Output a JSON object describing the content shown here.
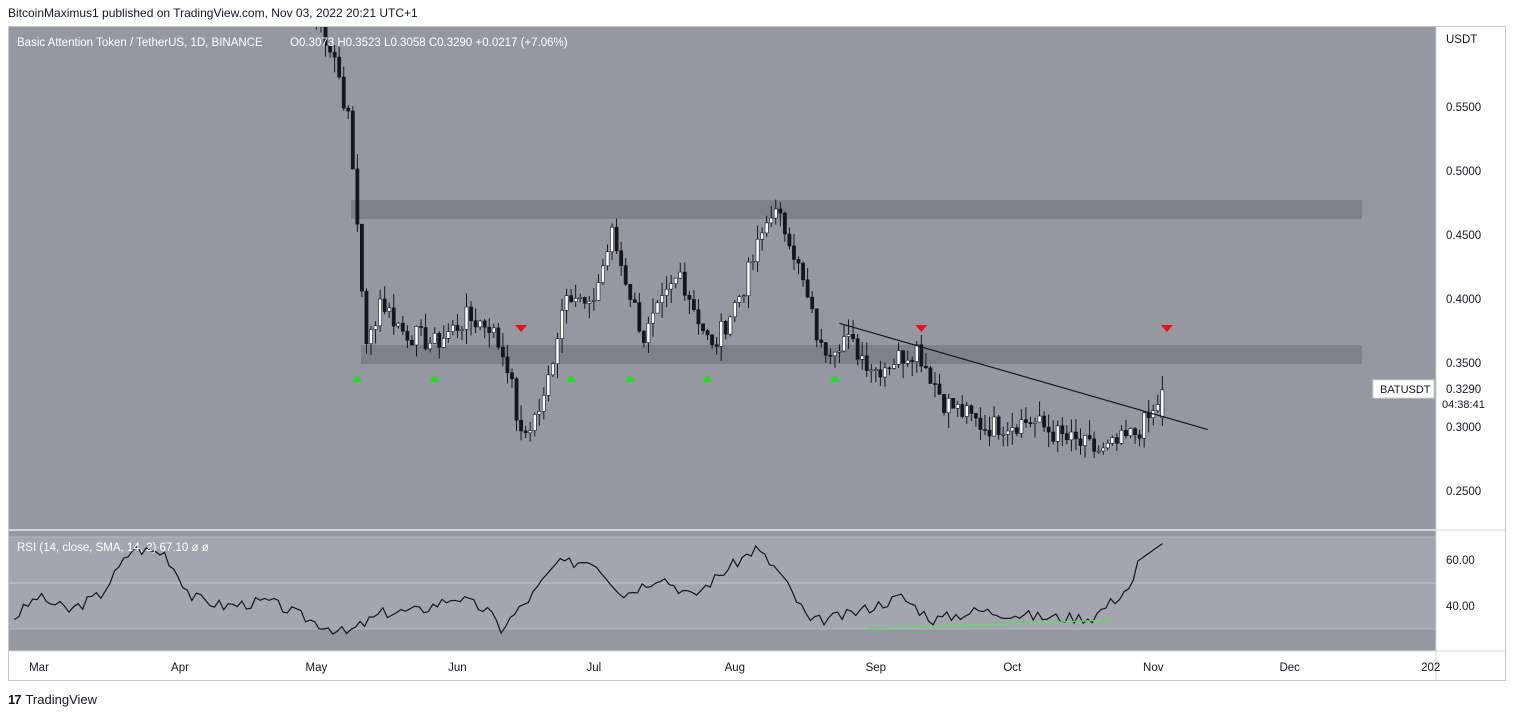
{
  "publisher_line": "BitcoinMaximus1 published on TradingView.com, Nov 03, 2022 20:21 UTC+1",
  "footer": {
    "logo_glyph": "17",
    "brand": "TradingView"
  },
  "legend": {
    "symbol": "Basic Attention Token / TetherUS, 1D, BINANCE",
    "open_label": "O",
    "open_value": "0.3073",
    "high_label": "H",
    "high_value": "0.3523",
    "low_label": "L",
    "low_value": "0.3058",
    "close_label": "C",
    "close_value": "0.3290",
    "change": "+0.0217 (+7.06%)"
  },
  "rsi_legend": "RSI (14, close, SMA, 14, 2) 67.10 ø ø",
  "price_axis": {
    "currency": "USDT",
    "ticks": [
      "0.5500",
      "0.5000",
      "0.4500",
      "0.4000",
      "0.3500",
      "0.3000",
      "0.2500"
    ]
  },
  "price_tag": {
    "symbol": "BATUSDT",
    "price": "0.3290",
    "countdown": "04:38:41"
  },
  "rsi_axis": {
    "ticks": [
      "60.00",
      "40.00"
    ]
  },
  "time_axis": {
    "ticks": [
      "Mar",
      "Apr",
      "May",
      "Jun",
      "Jul",
      "Aug",
      "Sep",
      "Oct",
      "Nov",
      "Dec",
      "202"
    ]
  },
  "colors": {
    "pane_bg": "#9598a1",
    "band_bg": "#a3a6ae",
    "zone": "#7b7d84",
    "candle_up": "#ffffff",
    "candle_down": "#131722",
    "arrow_up": "#22dd22",
    "arrow_down": "#ee1111",
    "divergence": "#5ae05a"
  },
  "chart_data": [
    {
      "type": "candlestick",
      "title": "Basic Attention Token / TetherUS, 1D, BINANCE",
      "ylabel": "USDT",
      "ylim": [
        0.22,
        0.6
      ],
      "x_ticks": [
        "Mar",
        "Apr",
        "May",
        "Jun",
        "Jul",
        "Aug",
        "Sep",
        "Oct",
        "Nov",
        "Dec",
        "202"
      ],
      "close_path": [
        [
          "2022-05-01",
          0.62
        ],
        [
          "2022-05-05",
          0.59
        ],
        [
          "2022-05-08",
          0.54
        ],
        [
          "2022-05-10",
          0.46
        ],
        [
          "2022-05-12",
          0.36
        ],
        [
          "2022-05-15",
          0.4
        ],
        [
          "2022-05-20",
          0.375
        ],
        [
          "2022-05-27",
          0.365
        ],
        [
          "2022-06-03",
          0.385
        ],
        [
          "2022-06-08",
          0.38
        ],
        [
          "2022-06-12",
          0.35
        ],
        [
          "2022-06-15",
          0.29
        ],
        [
          "2022-06-20",
          0.32
        ],
        [
          "2022-06-25",
          0.41
        ],
        [
          "2022-06-30",
          0.39
        ],
        [
          "2022-07-05",
          0.45
        ],
        [
          "2022-07-12",
          0.37
        ],
        [
          "2022-07-20",
          0.42
        ],
        [
          "2022-07-27",
          0.36
        ],
        [
          "2022-08-03",
          0.41
        ],
        [
          "2022-08-09",
          0.47
        ],
        [
          "2022-08-13",
          0.45
        ],
        [
          "2022-08-20",
          0.36
        ],
        [
          "2022-08-25",
          0.37
        ],
        [
          "2022-09-01",
          0.345
        ],
        [
          "2022-09-10",
          0.362
        ],
        [
          "2022-09-16",
          0.32
        ],
        [
          "2022-09-25",
          0.3
        ],
        [
          "2022-10-05",
          0.305
        ],
        [
          "2022-10-13",
          0.29
        ],
        [
          "2022-10-21",
          0.28
        ],
        [
          "2022-10-28",
          0.295
        ],
        [
          "2022-11-01",
          0.31
        ],
        [
          "2022-11-03",
          0.329
        ]
      ],
      "horizontal_zones": [
        {
          "low": 0.463,
          "high": 0.477
        },
        {
          "low": 0.35,
          "high": 0.364
        }
      ],
      "trendline": {
        "start": [
          "2022-08-24",
          0.381
        ],
        "end": [
          "2022-11-13",
          0.298
        ]
      },
      "support_markers": [
        "2022-05-10",
        "2022-05-27",
        "2022-06-26",
        "2022-07-09",
        "2022-07-26",
        "2022-08-23"
      ],
      "resistance_markers": [
        "2022-06-15",
        "2022-09-11",
        "2022-11-04"
      ],
      "last": {
        "open": 0.3073,
        "high": 0.3523,
        "low": 0.3058,
        "close": 0.329
      }
    },
    {
      "type": "line",
      "title": "RSI (14, close, SMA, 14, 2)",
      "ylim": [
        20,
        70
      ],
      "bands": [
        30,
        50,
        70
      ],
      "path": [
        [
          "2022-02-28",
          35
        ],
        [
          "2022-03-05",
          44
        ],
        [
          "2022-03-12",
          38
        ],
        [
          "2022-03-19",
          45
        ],
        [
          "2022-03-26",
          65
        ],
        [
          "2022-04-02",
          63
        ],
        [
          "2022-04-08",
          44
        ],
        [
          "2022-04-15",
          40
        ],
        [
          "2022-04-25",
          42
        ],
        [
          "2022-05-05",
          33
        ],
        [
          "2022-05-12",
          28
        ],
        [
          "2022-05-20",
          37
        ],
        [
          "2022-05-28",
          38
        ],
        [
          "2022-06-05",
          44
        ],
        [
          "2022-06-12",
          38
        ],
        [
          "2022-06-15",
          30
        ],
        [
          "2022-06-22",
          45
        ],
        [
          "2022-06-27",
          58
        ],
        [
          "2022-07-05",
          60
        ],
        [
          "2022-07-12",
          45
        ],
        [
          "2022-07-20",
          53
        ],
        [
          "2022-07-27",
          44
        ],
        [
          "2022-08-03",
          55
        ],
        [
          "2022-08-10",
          65
        ],
        [
          "2022-08-15",
          55
        ],
        [
          "2022-08-22",
          33
        ],
        [
          "2022-08-30",
          36
        ],
        [
          "2022-09-11",
          44
        ],
        [
          "2022-09-18",
          34
        ],
        [
          "2022-09-28",
          38
        ],
        [
          "2022-10-13",
          35
        ],
        [
          "2022-10-23",
          35
        ],
        [
          "2022-10-28",
          43
        ],
        [
          "2022-11-01",
          50
        ],
        [
          "2022-11-03",
          67.1
        ]
      ],
      "divergence_line": {
        "start": [
          "2022-08-30",
          30
        ],
        "end": [
          "2022-10-24",
          34
        ]
      },
      "last": 67.1
    }
  ]
}
